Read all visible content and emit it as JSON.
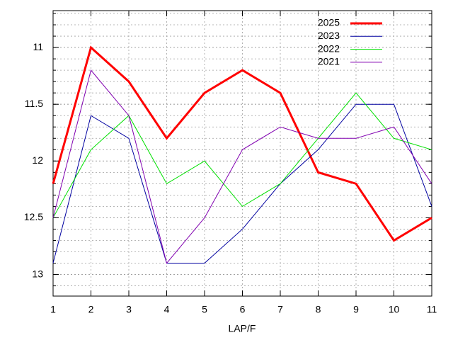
{
  "chart_data": {
    "type": "line",
    "x_label": "LAP/F",
    "x": [
      1,
      2,
      3,
      4,
      5,
      6,
      7,
      8,
      9,
      10,
      11
    ],
    "xlim": [
      1,
      11
    ],
    "xticks": [
      1,
      2,
      3,
      4,
      5,
      6,
      7,
      8,
      9,
      10,
      11
    ],
    "ylim": [
      13.19,
      10.675
    ],
    "yticks": [
      11,
      11.5,
      12,
      12.5,
      13
    ],
    "y_minor_tics": 5,
    "y_inverted": true,
    "grid": true,
    "legend": "top-right",
    "series": [
      {
        "name": "2025",
        "color": "#ff0000",
        "linewidth": 3,
        "values": [
          12.2,
          11.0,
          11.3,
          11.8,
          11.4,
          11.2,
          11.4,
          12.1,
          12.2,
          12.7,
          12.5
        ]
      },
      {
        "name": "2023",
        "color": "#0000a0",
        "linewidth": 1,
        "values": [
          12.9,
          11.6,
          11.8,
          12.9,
          12.9,
          12.6,
          12.2,
          11.9,
          11.5,
          11.5,
          12.4
        ]
      },
      {
        "name": "2022",
        "color": "#00e000",
        "linewidth": 1,
        "values": [
          12.5,
          11.9,
          11.6,
          12.2,
          12.0,
          12.4,
          12.2,
          11.8,
          11.4,
          11.8,
          11.9
        ]
      },
      {
        "name": "2021",
        "color": "#8000b0",
        "linewidth": 1,
        "values": [
          12.5,
          11.2,
          11.6,
          12.9,
          12.5,
          11.9,
          11.7,
          11.8,
          11.8,
          11.7,
          12.2
        ]
      }
    ]
  }
}
